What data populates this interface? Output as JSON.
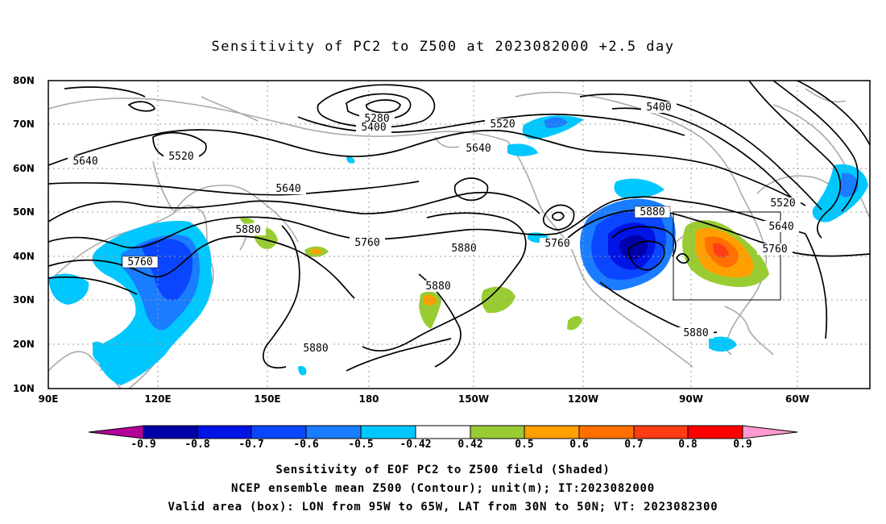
{
  "title": "Sensitivity of PC2 to Z500 at 2023082000 +2.5 day",
  "lat_labels": [
    "80N",
    "70N",
    "60N",
    "50N",
    "40N",
    "30N",
    "20N",
    "10N"
  ],
  "lon_labels": [
    "90E",
    "120E",
    "150E",
    "180",
    "150W",
    "120W",
    "90W",
    "60W"
  ],
  "contour_labels": {
    "c5280": "5280",
    "c5400a": "5400",
    "c5400b": "5400",
    "c5520a": "5520",
    "c5520b": "5520",
    "c5520c": "5520",
    "c5640a": "5640",
    "c5640b": "5640",
    "c5640c": "5640",
    "c5640d": "5640",
    "c5760a": "5760",
    "c5760b": "5760",
    "c5760c": "5760",
    "c5760d": "5760",
    "c5880a": "5880",
    "c5880b": "5880",
    "c5880c": "5880",
    "c5880d": "5880",
    "c5880e": "5880",
    "c5880f": "5880"
  },
  "colorbar": {
    "labels": [
      "-0.9",
      "-0.8",
      "-0.7",
      "-0.6",
      "-0.5",
      "-0.42",
      "0.42",
      "0.5",
      "0.6",
      "0.7",
      "0.8",
      "0.9"
    ],
    "colors": [
      "#b30099",
      "#0000aa",
      "#0014e6",
      "#0a46ff",
      "#1a7dff",
      "#00c8ff",
      "#ffffff",
      "#99cc33",
      "#ffa000",
      "#ff7000",
      "#ff3c14",
      "#ff0000",
      "#ff9ad0"
    ]
  },
  "captions": [
    "Sensitivity of EOF PC2 to Z500 field (Shaded)",
    "NCEP ensemble mean Z500 (Contour); unit(m); IT:2023082000",
    "Valid area (box): LON from 95W to 65W, LAT from 30N to 50N; VT: 2023082300"
  ]
}
